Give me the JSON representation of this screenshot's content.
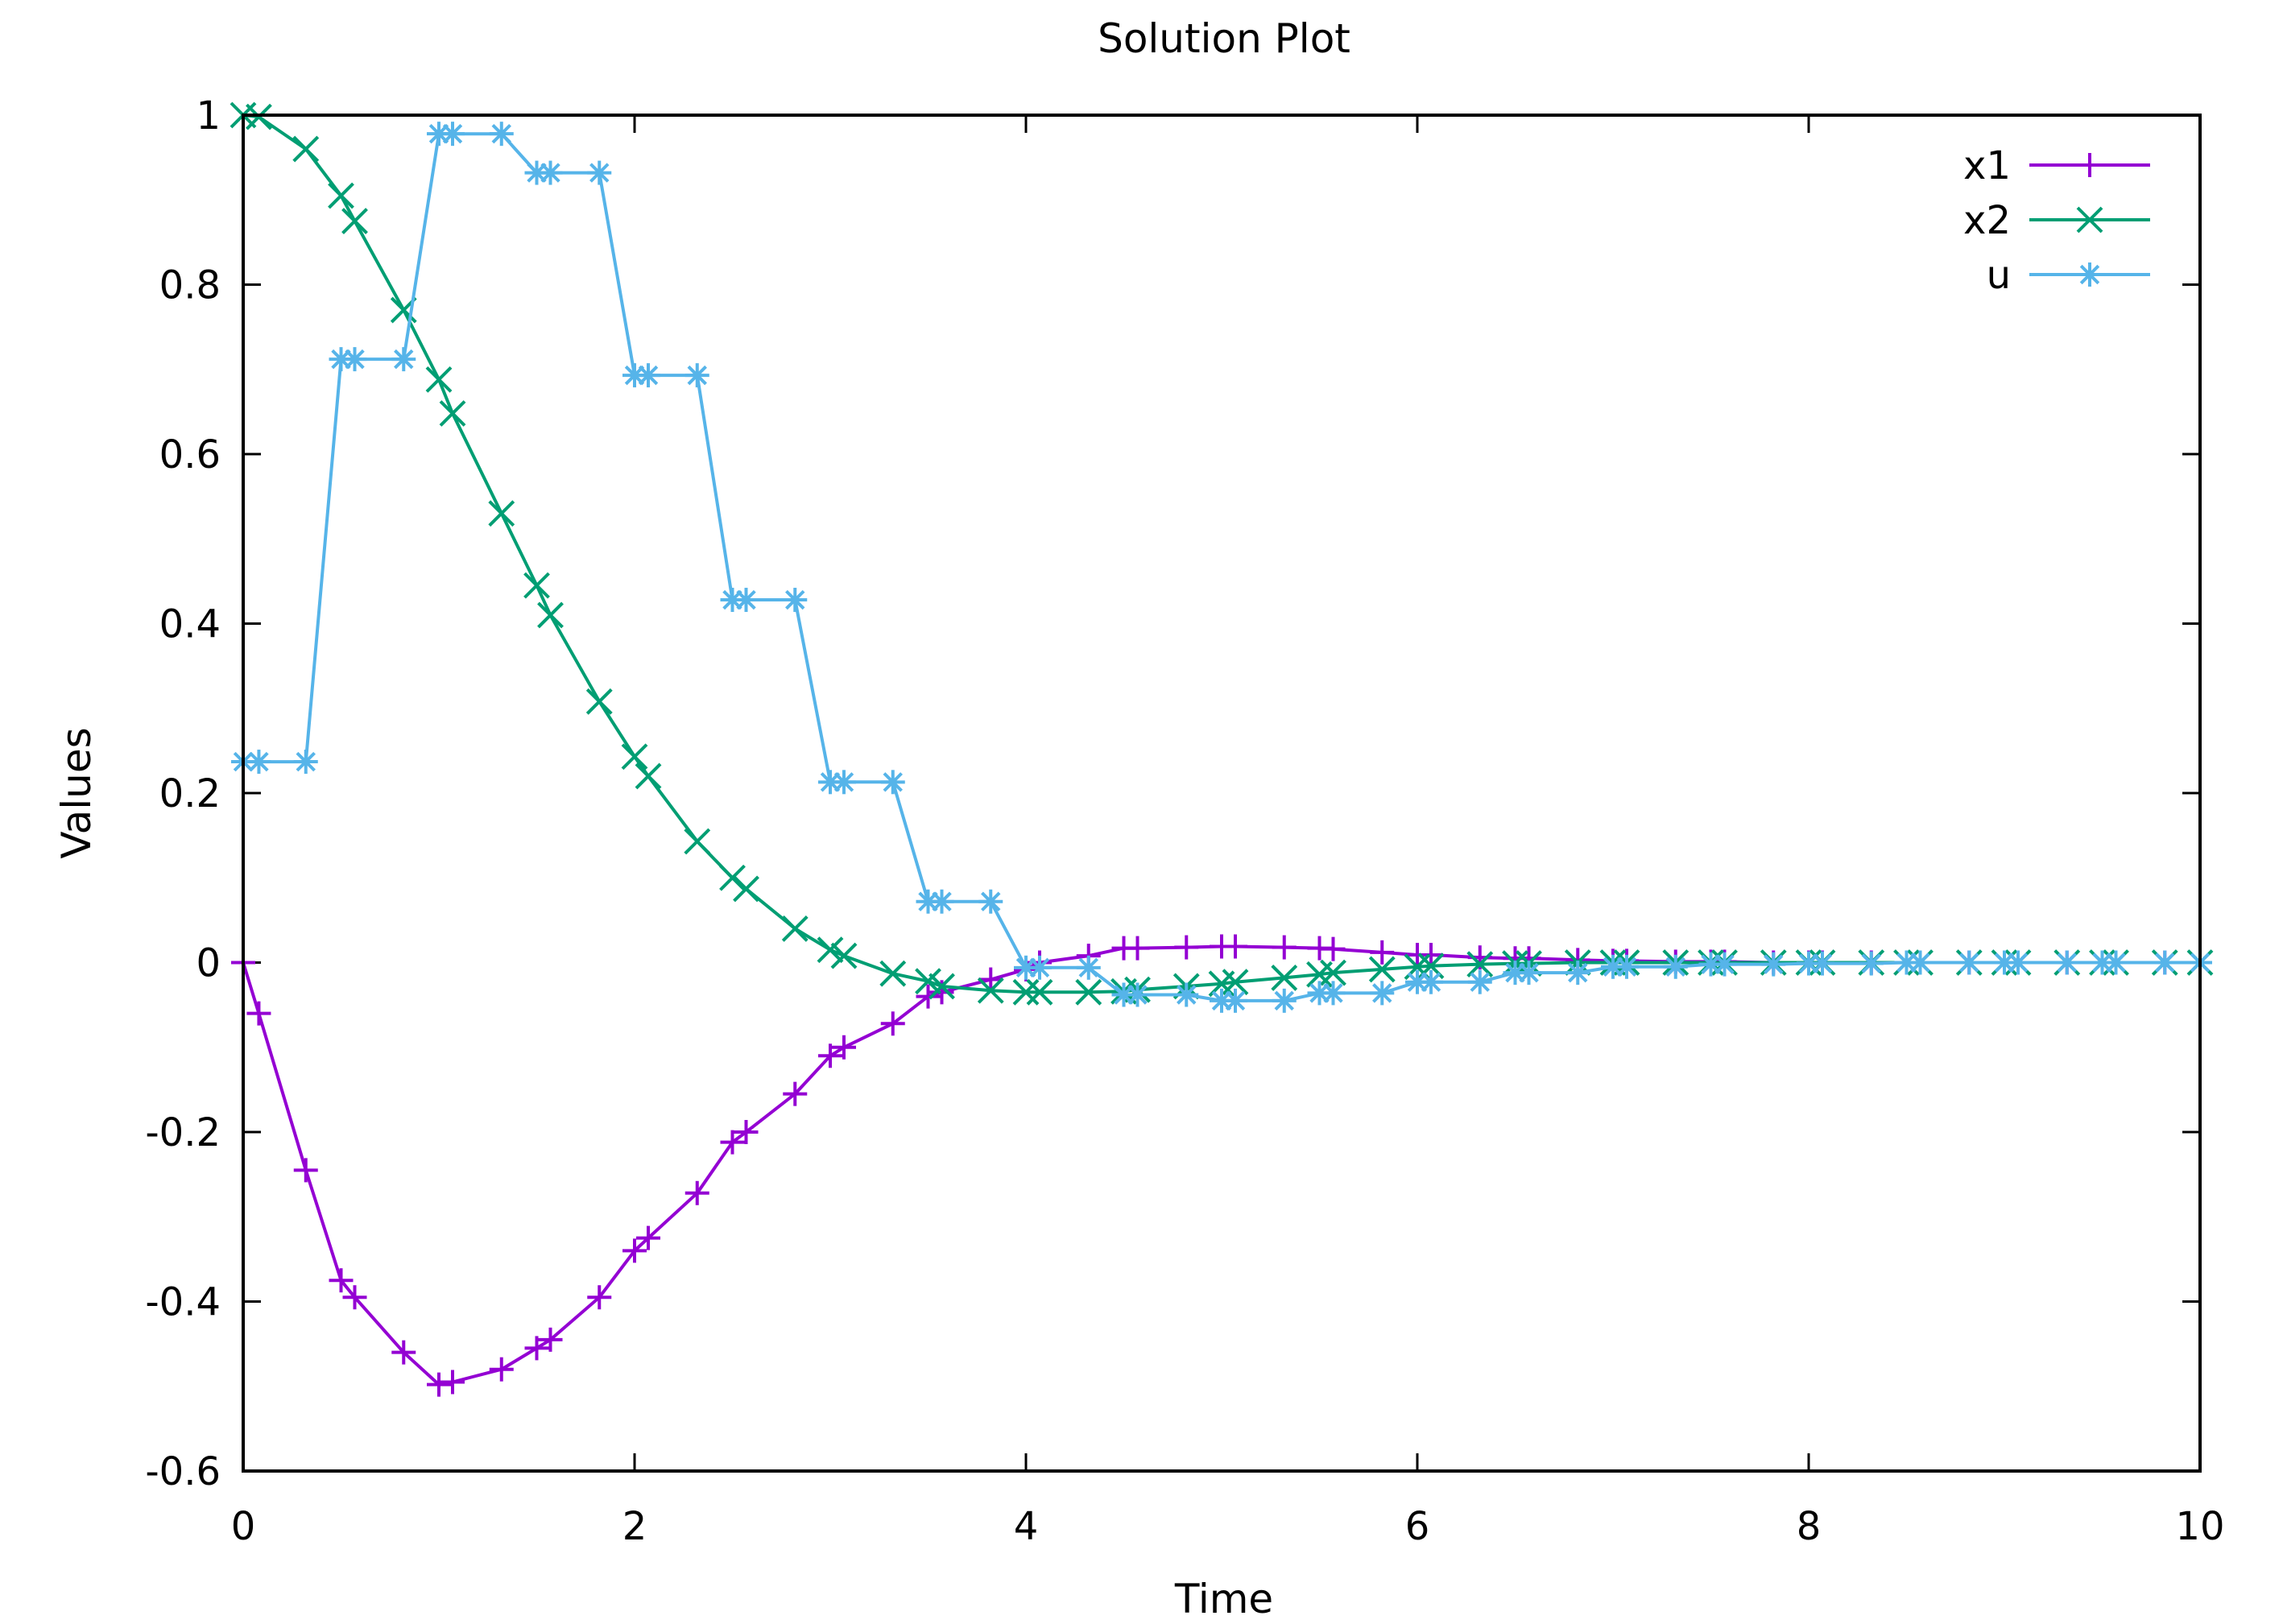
{
  "chart_data": {
    "type": "line",
    "title": "Solution Plot",
    "xlabel": "Time",
    "ylabel": "Values",
    "xlim": [
      0,
      10
    ],
    "ylim": [
      -0.6,
      1
    ],
    "xticks": [
      0,
      2,
      4,
      6,
      8,
      10
    ],
    "yticks": [
      -0.6,
      -0.4,
      -0.2,
      0,
      0.2,
      0.4,
      0.6,
      0.8,
      1
    ],
    "grid": false,
    "legend_position": "top-right",
    "series": [
      {
        "name": "x1",
        "color": "#9400d3",
        "marker": "plus",
        "points": [
          [
            0,
            0
          ],
          [
            0.08,
            -0.06
          ],
          [
            0.32,
            -0.245
          ],
          [
            0.5,
            -0.375
          ],
          [
            0.57,
            -0.395
          ],
          [
            0.82,
            -0.46
          ],
          [
            1.0,
            -0.498
          ],
          [
            1.07,
            -0.495
          ],
          [
            1.32,
            -0.48
          ],
          [
            1.5,
            -0.455
          ],
          [
            1.57,
            -0.445
          ],
          [
            1.82,
            -0.395
          ],
          [
            2.0,
            -0.34
          ],
          [
            2.07,
            -0.325
          ],
          [
            2.32,
            -0.272
          ],
          [
            2.5,
            -0.212
          ],
          [
            2.57,
            -0.2
          ],
          [
            2.82,
            -0.155
          ],
          [
            3.0,
            -0.11
          ],
          [
            3.07,
            -0.1
          ],
          [
            3.32,
            -0.072
          ],
          [
            3.5,
            -0.04
          ],
          [
            3.57,
            -0.035
          ],
          [
            3.82,
            -0.02
          ],
          [
            4.0,
            -0.008
          ],
          [
            4.07,
            0.0
          ],
          [
            4.32,
            0.008
          ],
          [
            4.5,
            0.017
          ],
          [
            4.57,
            0.017
          ],
          [
            4.82,
            0.018
          ],
          [
            5.0,
            0.019
          ],
          [
            5.07,
            0.019
          ],
          [
            5.32,
            0.018
          ],
          [
            5.5,
            0.017
          ],
          [
            5.57,
            0.016
          ],
          [
            5.82,
            0.012
          ],
          [
            6.0,
            0.009
          ],
          [
            6.07,
            0.009
          ],
          [
            6.32,
            0.006
          ],
          [
            6.5,
            0.005
          ],
          [
            6.57,
            0.005
          ],
          [
            6.82,
            0.003
          ],
          [
            7.0,
            0.002
          ],
          [
            7.07,
            0.002
          ],
          [
            7.32,
            0.001
          ],
          [
            7.5,
            0.001
          ],
          [
            7.57,
            0.001
          ],
          [
            7.82,
            0.0
          ],
          [
            8.0,
            0.0
          ],
          [
            8.07,
            0.0
          ],
          [
            8.32,
            0.0
          ],
          [
            8.5,
            0.0
          ],
          [
            8.57,
            0.0
          ],
          [
            8.82,
            0.0
          ],
          [
            9.0,
            0.0
          ],
          [
            9.07,
            0.0
          ],
          [
            9.32,
            0.0
          ],
          [
            9.5,
            0.0
          ],
          [
            9.57,
            0.0
          ],
          [
            9.82,
            0.0
          ],
          [
            10.0,
            0.0
          ]
        ]
      },
      {
        "name": "x2",
        "color": "#009e73",
        "marker": "cross",
        "points": [
          [
            0,
            1.0
          ],
          [
            0.08,
            0.998
          ],
          [
            0.32,
            0.96
          ],
          [
            0.5,
            0.905
          ],
          [
            0.57,
            0.875
          ],
          [
            0.82,
            0.77
          ],
          [
            1.0,
            0.688
          ],
          [
            1.07,
            0.648
          ],
          [
            1.32,
            0.53
          ],
          [
            1.5,
            0.445
          ],
          [
            1.57,
            0.41
          ],
          [
            1.82,
            0.308
          ],
          [
            2.0,
            0.243
          ],
          [
            2.07,
            0.22
          ],
          [
            2.32,
            0.143
          ],
          [
            2.5,
            0.1
          ],
          [
            2.57,
            0.087
          ],
          [
            2.82,
            0.04
          ],
          [
            3.0,
            0.015
          ],
          [
            3.07,
            0.008
          ],
          [
            3.32,
            -0.013
          ],
          [
            3.5,
            -0.022
          ],
          [
            3.57,
            -0.028
          ],
          [
            3.82,
            -0.033
          ],
          [
            4.0,
            -0.035
          ],
          [
            4.07,
            -0.035
          ],
          [
            4.32,
            -0.035
          ],
          [
            4.5,
            -0.034
          ],
          [
            4.57,
            -0.032
          ],
          [
            4.82,
            -0.028
          ],
          [
            5.0,
            -0.025
          ],
          [
            5.07,
            -0.023
          ],
          [
            5.32,
            -0.018
          ],
          [
            5.5,
            -0.014
          ],
          [
            5.57,
            -0.012
          ],
          [
            5.82,
            -0.008
          ],
          [
            6.0,
            -0.005
          ],
          [
            6.07,
            -0.004
          ],
          [
            6.32,
            -0.002
          ],
          [
            6.5,
            -0.001
          ],
          [
            6.57,
            -0.001
          ],
          [
            6.82,
            0.0
          ],
          [
            7.0,
            0.0
          ],
          [
            7.07,
            0.0
          ],
          [
            7.32,
            0.0
          ],
          [
            7.5,
            0.0
          ],
          [
            7.57,
            0.0
          ],
          [
            7.82,
            0.0
          ],
          [
            8.0,
            0.0
          ],
          [
            8.07,
            0.0
          ],
          [
            8.32,
            0.0
          ],
          [
            8.5,
            0.0
          ],
          [
            8.57,
            0.0
          ],
          [
            8.82,
            0.0
          ],
          [
            9.0,
            0.0
          ],
          [
            9.07,
            0.0
          ],
          [
            9.32,
            0.0
          ],
          [
            9.5,
            0.0
          ],
          [
            9.57,
            0.0
          ],
          [
            9.82,
            0.0
          ],
          [
            10.0,
            0.0
          ]
        ]
      },
      {
        "name": "u",
        "color": "#56b4e9",
        "marker": "star",
        "points": [
          [
            0,
            0.237
          ],
          [
            0.08,
            0.237
          ],
          [
            0.32,
            0.237
          ],
          [
            0.5,
            0.712
          ],
          [
            0.57,
            0.712
          ],
          [
            0.82,
            0.712
          ],
          [
            1.0,
            0.978
          ],
          [
            1.07,
            0.978
          ],
          [
            1.32,
            0.978
          ],
          [
            1.5,
            0.932
          ],
          [
            1.57,
            0.932
          ],
          [
            1.82,
            0.932
          ],
          [
            2.0,
            0.693
          ],
          [
            2.07,
            0.693
          ],
          [
            2.32,
            0.693
          ],
          [
            2.5,
            0.428
          ],
          [
            2.57,
            0.428
          ],
          [
            2.82,
            0.428
          ],
          [
            3.0,
            0.213
          ],
          [
            3.07,
            0.213
          ],
          [
            3.32,
            0.213
          ],
          [
            3.5,
            0.072
          ],
          [
            3.57,
            0.072
          ],
          [
            3.82,
            0.072
          ],
          [
            4.0,
            -0.006
          ],
          [
            4.07,
            -0.006
          ],
          [
            4.32,
            -0.006
          ],
          [
            4.5,
            -0.038
          ],
          [
            4.57,
            -0.038
          ],
          [
            4.82,
            -0.038
          ],
          [
            5.0,
            -0.045
          ],
          [
            5.07,
            -0.045
          ],
          [
            5.32,
            -0.045
          ],
          [
            5.5,
            -0.036
          ],
          [
            5.57,
            -0.036
          ],
          [
            5.82,
            -0.036
          ],
          [
            6.0,
            -0.023
          ],
          [
            6.07,
            -0.023
          ],
          [
            6.32,
            -0.023
          ],
          [
            6.5,
            -0.012
          ],
          [
            6.57,
            -0.012
          ],
          [
            6.82,
            -0.012
          ],
          [
            7.0,
            -0.005
          ],
          [
            7.07,
            -0.005
          ],
          [
            7.32,
            -0.005
          ],
          [
            7.5,
            -0.002
          ],
          [
            7.57,
            -0.002
          ],
          [
            7.82,
            -0.002
          ],
          [
            8.0,
            -0.001
          ],
          [
            8.07,
            -0.001
          ],
          [
            8.32,
            -0.001
          ],
          [
            8.5,
            0.0
          ],
          [
            8.57,
            0.0
          ],
          [
            8.82,
            0.0
          ],
          [
            9.0,
            0.0
          ],
          [
            9.07,
            0.0
          ],
          [
            9.32,
            0.0
          ],
          [
            9.5,
            0.0
          ],
          [
            9.57,
            0.0
          ],
          [
            9.82,
            0.0
          ],
          [
            10.0,
            0.0
          ]
        ]
      }
    ]
  }
}
